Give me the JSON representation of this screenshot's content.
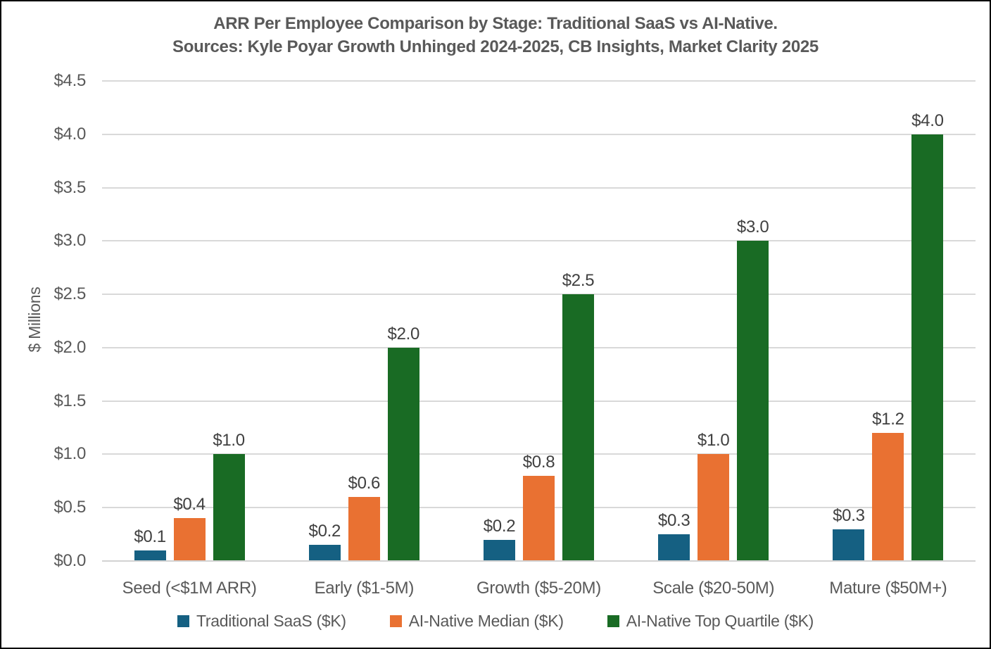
{
  "title": {
    "line1": "ARR Per Employee Comparison by Stage: Traditional SaaS vs AI-Native.",
    "line2": "Sources: Kyle Poyar Growth Unhinged 2024-2025, CB Insights, Market Clarity 2025"
  },
  "colors": {
    "background": "#FFFFFF",
    "border": "#000000",
    "title_text": "#595959",
    "axis_text": "#595959",
    "data_label_text": "#404040",
    "gridline": "#D9D9D9",
    "axis_line": "#D2D2D2",
    "series_blue": "#156082",
    "series_orange": "#E97132",
    "series_green": "#196B24"
  },
  "chart_data": {
    "type": "bar",
    "title": "ARR Per Employee Comparison by Stage: Traditional SaaS vs AI-Native.",
    "subtitle": "Sources: Kyle Poyar Growth Unhinged 2024-2025, CB Insights, Market Clarity 2025",
    "categories": [
      "Seed (<$1M ARR)",
      "Early ($1-5M)",
      "Growth ($5-20M)",
      "Scale ($20-50M)",
      "Mature ($50M+)"
    ],
    "series": [
      {
        "name": "Traditional SaaS ($K)",
        "key": "traditional-saas",
        "color": "#156082",
        "values": [
          0.1,
          0.15,
          0.2,
          0.25,
          0.3
        ],
        "data_labels": [
          "$0.1",
          "$0.2",
          "$0.2",
          "$0.3",
          "$0.3"
        ]
      },
      {
        "name": "AI-Native Median ($K)",
        "key": "ai-native-median",
        "color": "#E97132",
        "values": [
          0.4,
          0.6,
          0.8,
          1.0,
          1.2
        ],
        "data_labels": [
          "$0.4",
          "$0.6",
          "$0.8",
          "$1.0",
          "$1.2"
        ]
      },
      {
        "name": "AI-Native Top Quartile ($K)",
        "key": "ai-native-top-quartile",
        "color": "#196B24",
        "values": [
          1.0,
          2.0,
          2.5,
          3.0,
          4.0
        ],
        "data_labels": [
          "$1.0",
          "$2.0",
          "$2.5",
          "$3.0",
          "$4.0"
        ]
      }
    ],
    "xlabel": "",
    "ylabel": "$ Millions",
    "ylim": [
      0,
      4.5
    ],
    "y_tick_step": 0.5,
    "y_ticks": [
      {
        "value": 4.5,
        "label": "$4.5"
      },
      {
        "value": 4.0,
        "label": "$4.0"
      },
      {
        "value": 3.5,
        "label": "$3.5"
      },
      {
        "value": 3.0,
        "label": "$3.0"
      },
      {
        "value": 2.5,
        "label": "$2.5"
      },
      {
        "value": 2.0,
        "label": "$2.0"
      },
      {
        "value": 1.5,
        "label": "$1.5"
      },
      {
        "value": 1.0,
        "label": "$1.0"
      },
      {
        "value": 0.5,
        "label": "$0.5"
      },
      {
        "value": 0.0,
        "label": "$0.0"
      }
    ],
    "grid": true,
    "legend_position": "bottom"
  }
}
